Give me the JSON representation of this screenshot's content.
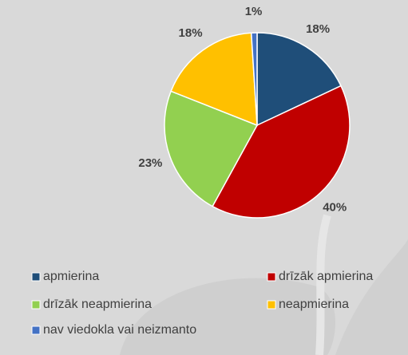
{
  "chart_data": {
    "type": "pie",
    "categories": [
      "apmierina",
      "drīzāk apmierina",
      "drīzāk neapmierina",
      "neapmierina",
      "nav viedokla vai neizmanto"
    ],
    "values": [
      18,
      40,
      23,
      18,
      1
    ],
    "value_labels": [
      "18%",
      "40%",
      "23%",
      "18%",
      "1%"
    ],
    "colors": [
      "#1f4e79",
      "#c00000",
      "#92d050",
      "#ffc000",
      "#4472c4"
    ]
  }
}
